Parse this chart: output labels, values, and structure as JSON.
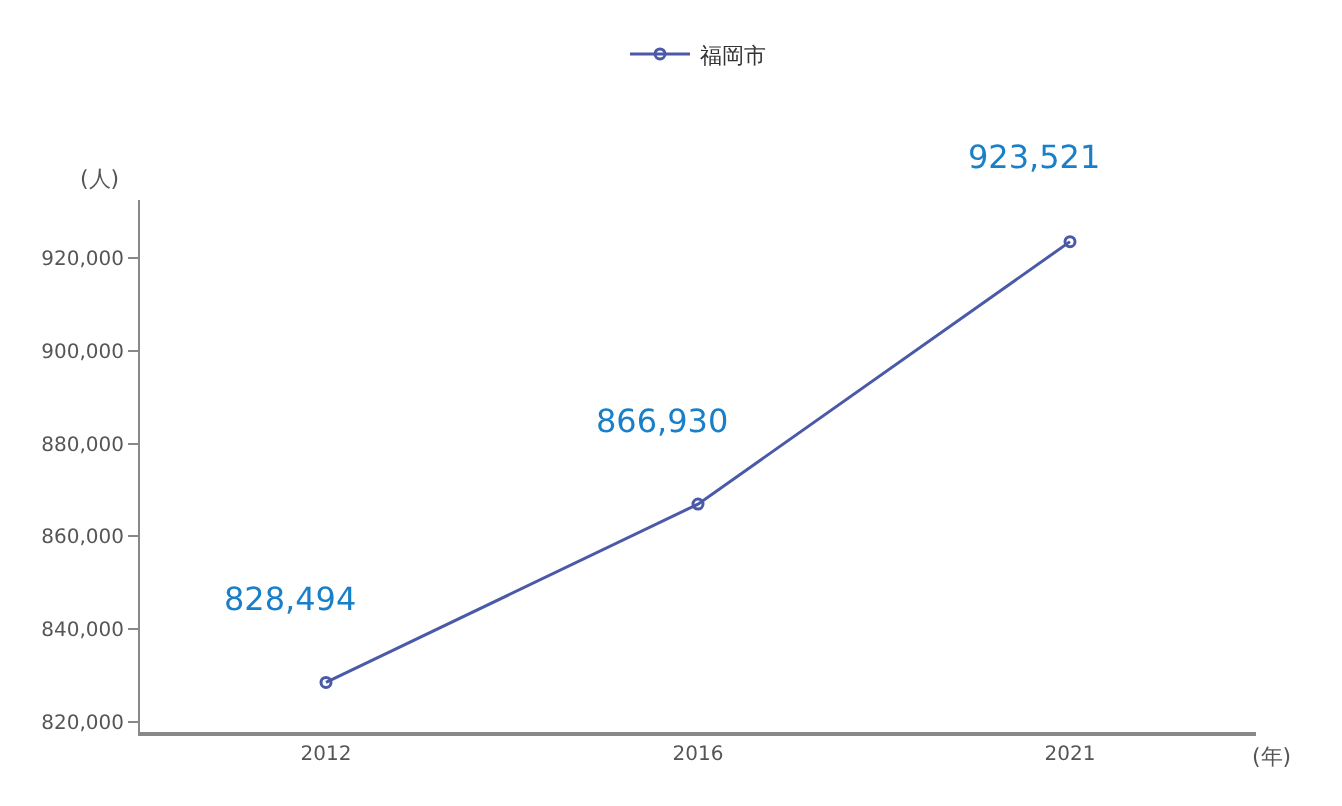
{
  "chart_data": {
    "type": "line",
    "categories": [
      "2012",
      "2016",
      "2021"
    ],
    "series": [
      {
        "name": "福岡市",
        "color": "#4a5aa8",
        "values": [
          828494,
          866930,
          923521
        ],
        "value_labels": [
          "828,494",
          "866,930",
          "923,521"
        ]
      }
    ],
    "xlabel": "(年)",
    "ylabel": "(人)",
    "ylim": [
      817800,
      932500
    ],
    "yticks": [
      {
        "value": 820000,
        "label": "820,000"
      },
      {
        "value": 840000,
        "label": "840,000"
      },
      {
        "value": 860000,
        "label": "860,000"
      },
      {
        "value": 880000,
        "label": "880,000"
      },
      {
        "value": 900000,
        "label": "900,000"
      },
      {
        "value": 920000,
        "label": "920,000"
      }
    ],
    "legend": "top",
    "marker": "circle",
    "line_style": "solid"
  }
}
